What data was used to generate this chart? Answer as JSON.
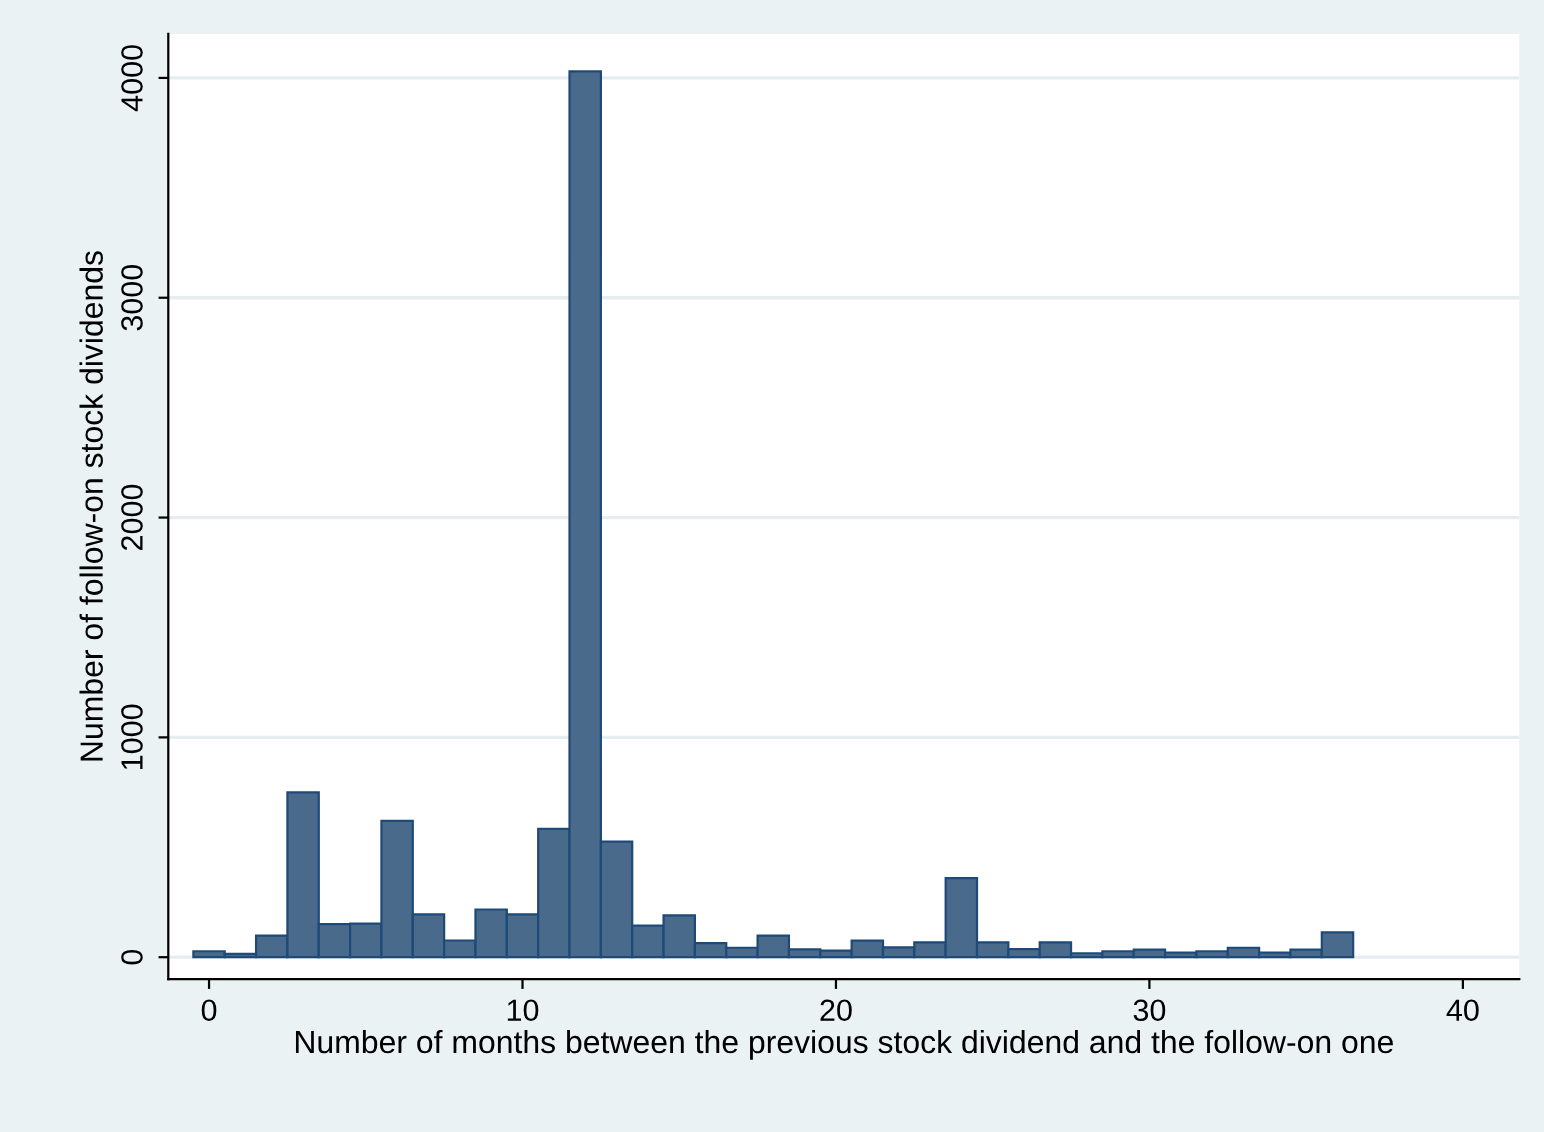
{
  "chart_data": {
    "type": "histogram",
    "xlabel": "Number of months between the previous stock dividend and the follow-on one",
    "ylabel": "Number of follow-on stock dividends",
    "bins": [
      -0.5,
      0.5,
      1.5,
      2.5,
      3.5,
      4.5,
      5.5,
      6.5,
      7.5,
      8.5,
      9.5,
      10.5,
      11.5,
      12.5,
      13.5,
      14.5,
      15.5,
      16.5,
      17.5,
      18.5,
      19.5,
      20.5,
      21.5,
      22.5,
      23.5,
      24.5,
      25.5,
      26.5,
      27.5,
      28.5,
      29.5,
      30.5,
      31.5,
      32.5,
      33.5,
      34.5,
      35.5,
      36.5
    ],
    "values": [
      27,
      15,
      98,
      750,
      150,
      153,
      620,
      195,
      76,
      217,
      195,
      584,
      4030,
      526,
      144,
      190,
      64,
      43,
      98,
      36,
      30,
      75,
      45,
      67,
      360,
      67,
      37,
      67,
      18,
      27,
      34,
      21,
      27,
      43,
      21,
      34,
      113
    ],
    "color": "#4a6a8c",
    "xlim": [
      -1.3,
      41.8
    ],
    "ylim": [
      -100,
      4200
    ],
    "xticks": [
      0,
      10,
      20,
      30,
      40
    ],
    "yticks": [
      0,
      1000,
      2000,
      3000,
      4000
    ],
    "grid": "y"
  }
}
